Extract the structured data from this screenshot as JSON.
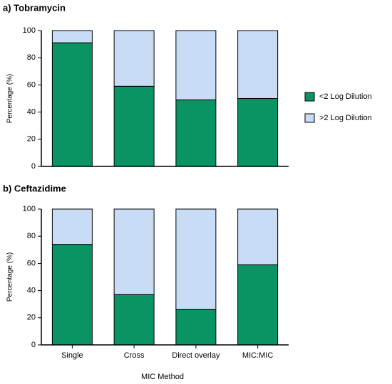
{
  "chart_data": [
    {
      "type": "bar",
      "stacked": true,
      "title": "a) Tobramycin",
      "y_label": "Percentage (%)",
      "categories": [
        null,
        null,
        null,
        null
      ],
      "series": [
        {
          "name": "<2 Log Dilution",
          "color": "#0a9463",
          "values": [
            91,
            59,
            49,
            50
          ]
        },
        {
          "name": ">2 Log Dilution",
          "color": "#c9dcf6",
          "values": [
            9,
            41,
            51,
            50
          ]
        }
      ],
      "ylim": [
        0,
        100
      ],
      "yticks": [
        0,
        20,
        40,
        60,
        80,
        100
      ],
      "legend": "right"
    },
    {
      "type": "bar",
      "stacked": true,
      "title": "b) Ceftazidime",
      "y_label": "Percentage (%)",
      "x_label": "MIC Method",
      "categories": [
        "Single",
        "Cross",
        "Direct overlay",
        "MIC:MIC"
      ],
      "series": [
        {
          "color": "#0a9463",
          "values": [
            74,
            37,
            26,
            59
          ]
        },
        {
          "color": "#c9dcf6",
          "values": [
            26,
            63,
            74,
            41
          ]
        }
      ],
      "ylim": [
        0,
        100
      ],
      "yticks": [
        0,
        20,
        40,
        60,
        80,
        100
      ]
    }
  ]
}
